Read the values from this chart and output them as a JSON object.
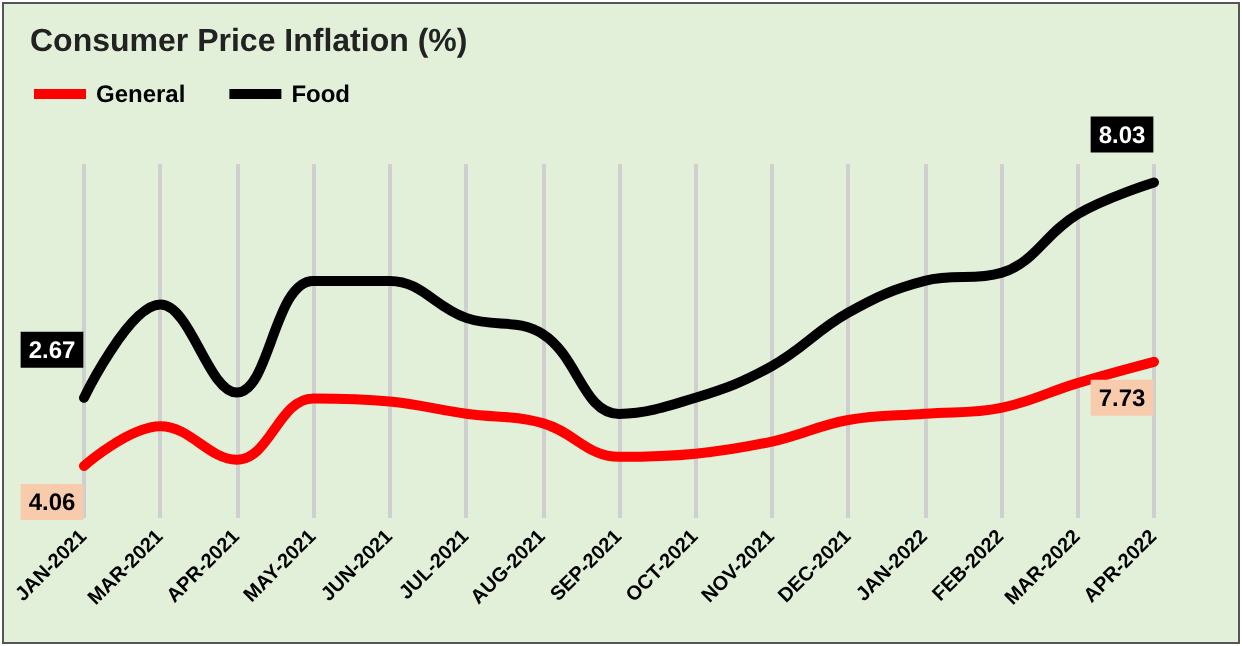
{
  "chart_data": {
    "type": "line",
    "title": "Consumer Price Inflation (%)",
    "categories": [
      "JAN-2021",
      "MAR-2021",
      "APR-2021",
      "MAY-2021",
      "JUN-2021",
      "JUL-2021",
      "AUG-2021",
      "SEP-2021",
      "OCT-2021",
      "NOV-2021",
      "DEC-2021",
      "JAN-2022",
      "FEB-2022",
      "MAR-2022",
      "APR-2022"
    ],
    "series": [
      {
        "name": "General",
        "color": "#ff0000",
        "values": [
          4.06,
          5.46,
          4.28,
          6.44,
          6.33,
          5.9,
          5.57,
          4.38,
          4.49,
          4.92,
          5.68,
          5.9,
          6.11,
          6.98,
          7.73
        ],
        "value_labels": [
          "4.06",
          null,
          null,
          null,
          null,
          null,
          null,
          null,
          null,
          null,
          null,
          null,
          null,
          null,
          "7.73"
        ]
      },
      {
        "name": "Food",
        "color": "#000000",
        "axis": "y2",
        "values": [
          2.67,
          4.99,
          2.8,
          5.58,
          5.58,
          4.66,
          4.26,
          2.27,
          2.67,
          3.46,
          4.79,
          5.58,
          5.78,
          7.24,
          8.03
        ],
        "value_labels": [
          "2.67",
          null,
          null,
          null,
          null,
          null,
          null,
          null,
          null,
          null,
          null,
          null,
          null,
          null,
          "8.03"
        ]
      }
    ],
    "tick_labels": "x",
    "grid": "x",
    "legend": "top left",
    "marker": "none",
    "line_style": "solid"
  }
}
